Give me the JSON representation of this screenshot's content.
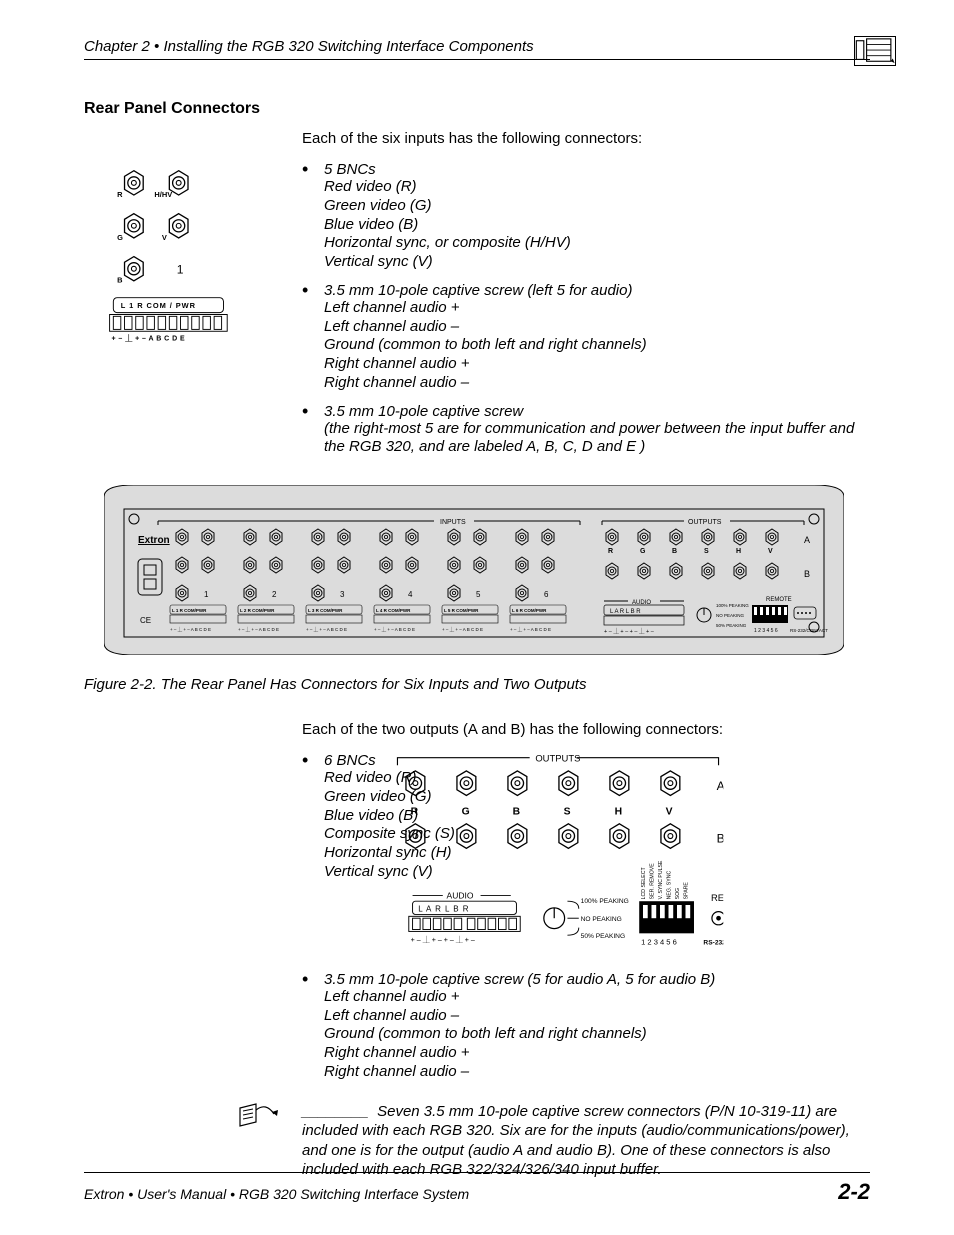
{
  "header": {
    "chapter_line": "Chapter 2 • Installing the RGB 320 Switching Interface Components"
  },
  "section_title": "Rear Panel Connectors",
  "intro1": "Each of the six inputs has the following connectors:",
  "inputs_list": {
    "item1": {
      "lead": "5 BNCs",
      "lines": [
        "Red video (R)",
        "Green video (G)",
        "Blue video (B)",
        "Horizontal sync, or composite (H/HV)",
        "Vertical sync (V)"
      ]
    },
    "item2": {
      "lead": "3.5 mm 10-pole captive screw (left 5 for audio)",
      "lines": [
        "Left channel audio +",
        "Left channel audio –",
        "Ground (common to both left and right channels)",
        "Right channel audio +",
        "Right channel audio –"
      ]
    },
    "item3": {
      "lead": "3.5 mm 10-pole captive screw",
      "lines": [
        "(the right-most 5 are for communication and power between the input buffer and the RGB 320, and are labeled A, B, C, D and E )"
      ]
    }
  },
  "caption1": "Figure 2-2. The Rear Panel Has Connectors for Six Inputs and Two Outputs",
  "intro2": "Each of the two outputs (A and B) has the following connectors:",
  "outputs_list": {
    "item1": {
      "lead": "6 BNCs",
      "lines": [
        "Red video (R)",
        "Green video (G)",
        "Blue video (B)",
        "Composite sync (S)",
        "Horizontal sync (H)",
        "Vertical sync (V)"
      ]
    },
    "item2": {
      "lead": "3.5 mm 10-pole captive screw (5 for audio A, 5 for audio B)",
      "lines": [
        "Left channel audio +",
        "Left channel audio –",
        "Ground (common to both left and right channels)",
        "Right channel audio +",
        "Right channel audio –"
      ]
    }
  },
  "note": {
    "dash": "________",
    "text": "Seven 3.5 mm 10-pole captive screw connectors (P/N 10-319-11) are included with each RGB 320. Six are for the inputs (audio/communications/power), and one is for the output (audio A and audio B). One of these connectors is also included with each RGB 322/324/326/340 input buffer."
  },
  "footer": {
    "left": "Extron • User's Manual  • RGB 320 Switching Interface System",
    "right": "2-2"
  },
  "diagrams": {
    "input_block": {
      "labels": {
        "R": "R",
        "HHV": "H/HV",
        "G": "G",
        "V": "V",
        "B": "B",
        "num": "1"
      },
      "terminal": {
        "top": "L  1  R   COM / PWR",
        "bottom": "+  –  ⏊  +  –  A B C D E"
      }
    },
    "wide_panel": {
      "brand": "Extron",
      "inputs_label": "INPUTS",
      "outputs_label": "OUTPUTS",
      "input_nums": [
        "1",
        "2",
        "3",
        "4",
        "5",
        "6"
      ],
      "out_rows": [
        "A",
        "B"
      ],
      "out_cols": [
        "R",
        "G",
        "B",
        "S",
        "H",
        "V"
      ],
      "audio_label": "AUDIO",
      "remote_label": "REMOTE",
      "audio_top": "L A R    L B R",
      "audio_bot": "+ – ⏊ + –   + – ⏊ + –",
      "term_label": "COM/PWR",
      "term_left": "L",
      "term_right": "R",
      "rs232": "RS-232/CONTACT",
      "dip_nums": "1 2 3 4 5 6",
      "peak1": "100% PEAKING",
      "peak2": "NO PEAKING",
      "peak3": "50% PEAKING"
    },
    "output_block": {
      "outputs_label": "OUTPUTS",
      "cols": [
        "R",
        "G",
        "B",
        "S",
        "H",
        "V"
      ],
      "rows": [
        "A",
        "B"
      ],
      "audio_label": "AUDIO",
      "audio_top": "L  A  R     L  B  R",
      "audio_bot": "+  –  ⏊  +  –    +  –  ⏊  +  –",
      "peak1": "100%  PEAKING",
      "peak2": "NO PEAKING",
      "peak3": "50%  PEAKING",
      "dip_nums": "1   2   3   4   5   6",
      "dip_side": [
        "LCD SELECT",
        "SER. REMOVE",
        "V. SYNC PULSE",
        "NEG. SYNC",
        "SOG",
        "SPARE"
      ],
      "re": "RE",
      "rs": "RS-232"
    }
  },
  "style": {
    "bg": "#ffffff",
    "text": "#000000",
    "panel_fill": "#dcdcdc",
    "panel_stroke": "#000000",
    "body_font_size": 15,
    "title_font_size": 16,
    "footer_font_size": 14,
    "page_num_font_size": 22
  }
}
